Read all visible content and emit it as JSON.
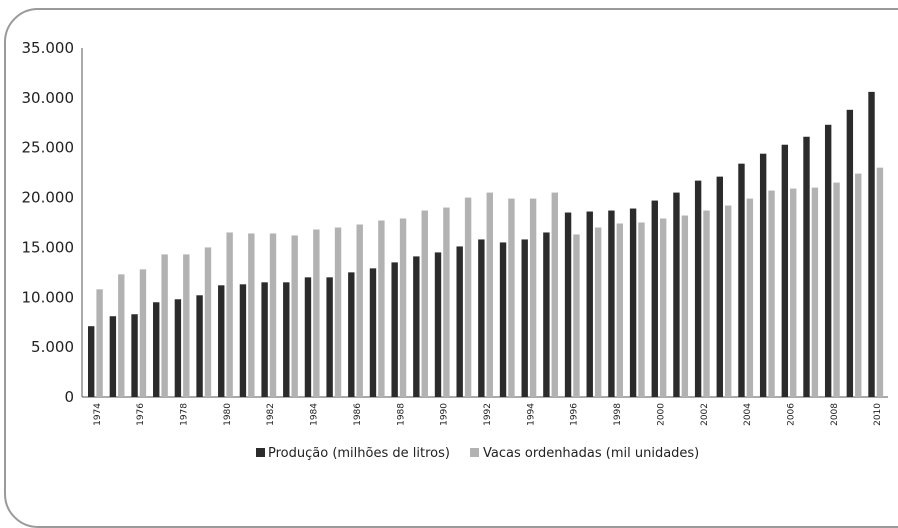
{
  "chart_data": {
    "type": "bar",
    "categories": [
      "1974",
      "1975",
      "1976",
      "1977",
      "1978",
      "1979",
      "1980",
      "1981",
      "1982",
      "1983",
      "1984",
      "1985",
      "1986",
      "1987",
      "1988",
      "1989",
      "1990",
      "1991",
      "1992",
      "1993",
      "1994",
      "1995",
      "1996",
      "1997",
      "1998",
      "1999",
      "2000",
      "2001",
      "2002",
      "2003",
      "2004",
      "2005",
      "2006",
      "2007",
      "2008",
      "2009",
      "2010"
    ],
    "x_tick_labels": [
      "1974",
      "1976",
      "1978",
      "1980",
      "1982",
      "1984",
      "1986",
      "1988",
      "1990",
      "1992",
      "1994",
      "1996",
      "1998",
      "2000",
      "2002",
      "2004",
      "2006",
      "2008",
      "2010"
    ],
    "y_tick_labels": [
      "0",
      "5.000",
      "10.000",
      "15.000",
      "20.000",
      "25.000",
      "30.000",
      "35.000"
    ],
    "ylim": [
      0,
      35000
    ],
    "grid": false,
    "legend_position": "bottom",
    "series": [
      {
        "name": "Produção (milhões de litros)",
        "color": "#2b2b2b",
        "values": [
          7100,
          8100,
          8300,
          9500,
          9800,
          10200,
          11200,
          11300,
          11500,
          11500,
          12000,
          12000,
          12500,
          12900,
          13500,
          14100,
          14500,
          15100,
          15800,
          15500,
          15800,
          16500,
          18500,
          18600,
          18700,
          18900,
          19700,
          20500,
          21700,
          22100,
          23400,
          24400,
          25300,
          26100,
          27300,
          28800,
          30600
        ]
      },
      {
        "name": "Vacas ordenhadas (mil unidades)",
        "color": "#b2b2b2",
        "values": [
          10800,
          12300,
          12800,
          14300,
          14300,
          15000,
          16500,
          16400,
          16400,
          16200,
          16800,
          17000,
          17300,
          17700,
          17900,
          18700,
          19000,
          20000,
          20500,
          19900,
          19900,
          20500,
          16300,
          17000,
          17400,
          17500,
          17900,
          18200,
          18700,
          19200,
          19900,
          20700,
          20900,
          21000,
          21500,
          22400,
          23000
        ]
      }
    ]
  }
}
